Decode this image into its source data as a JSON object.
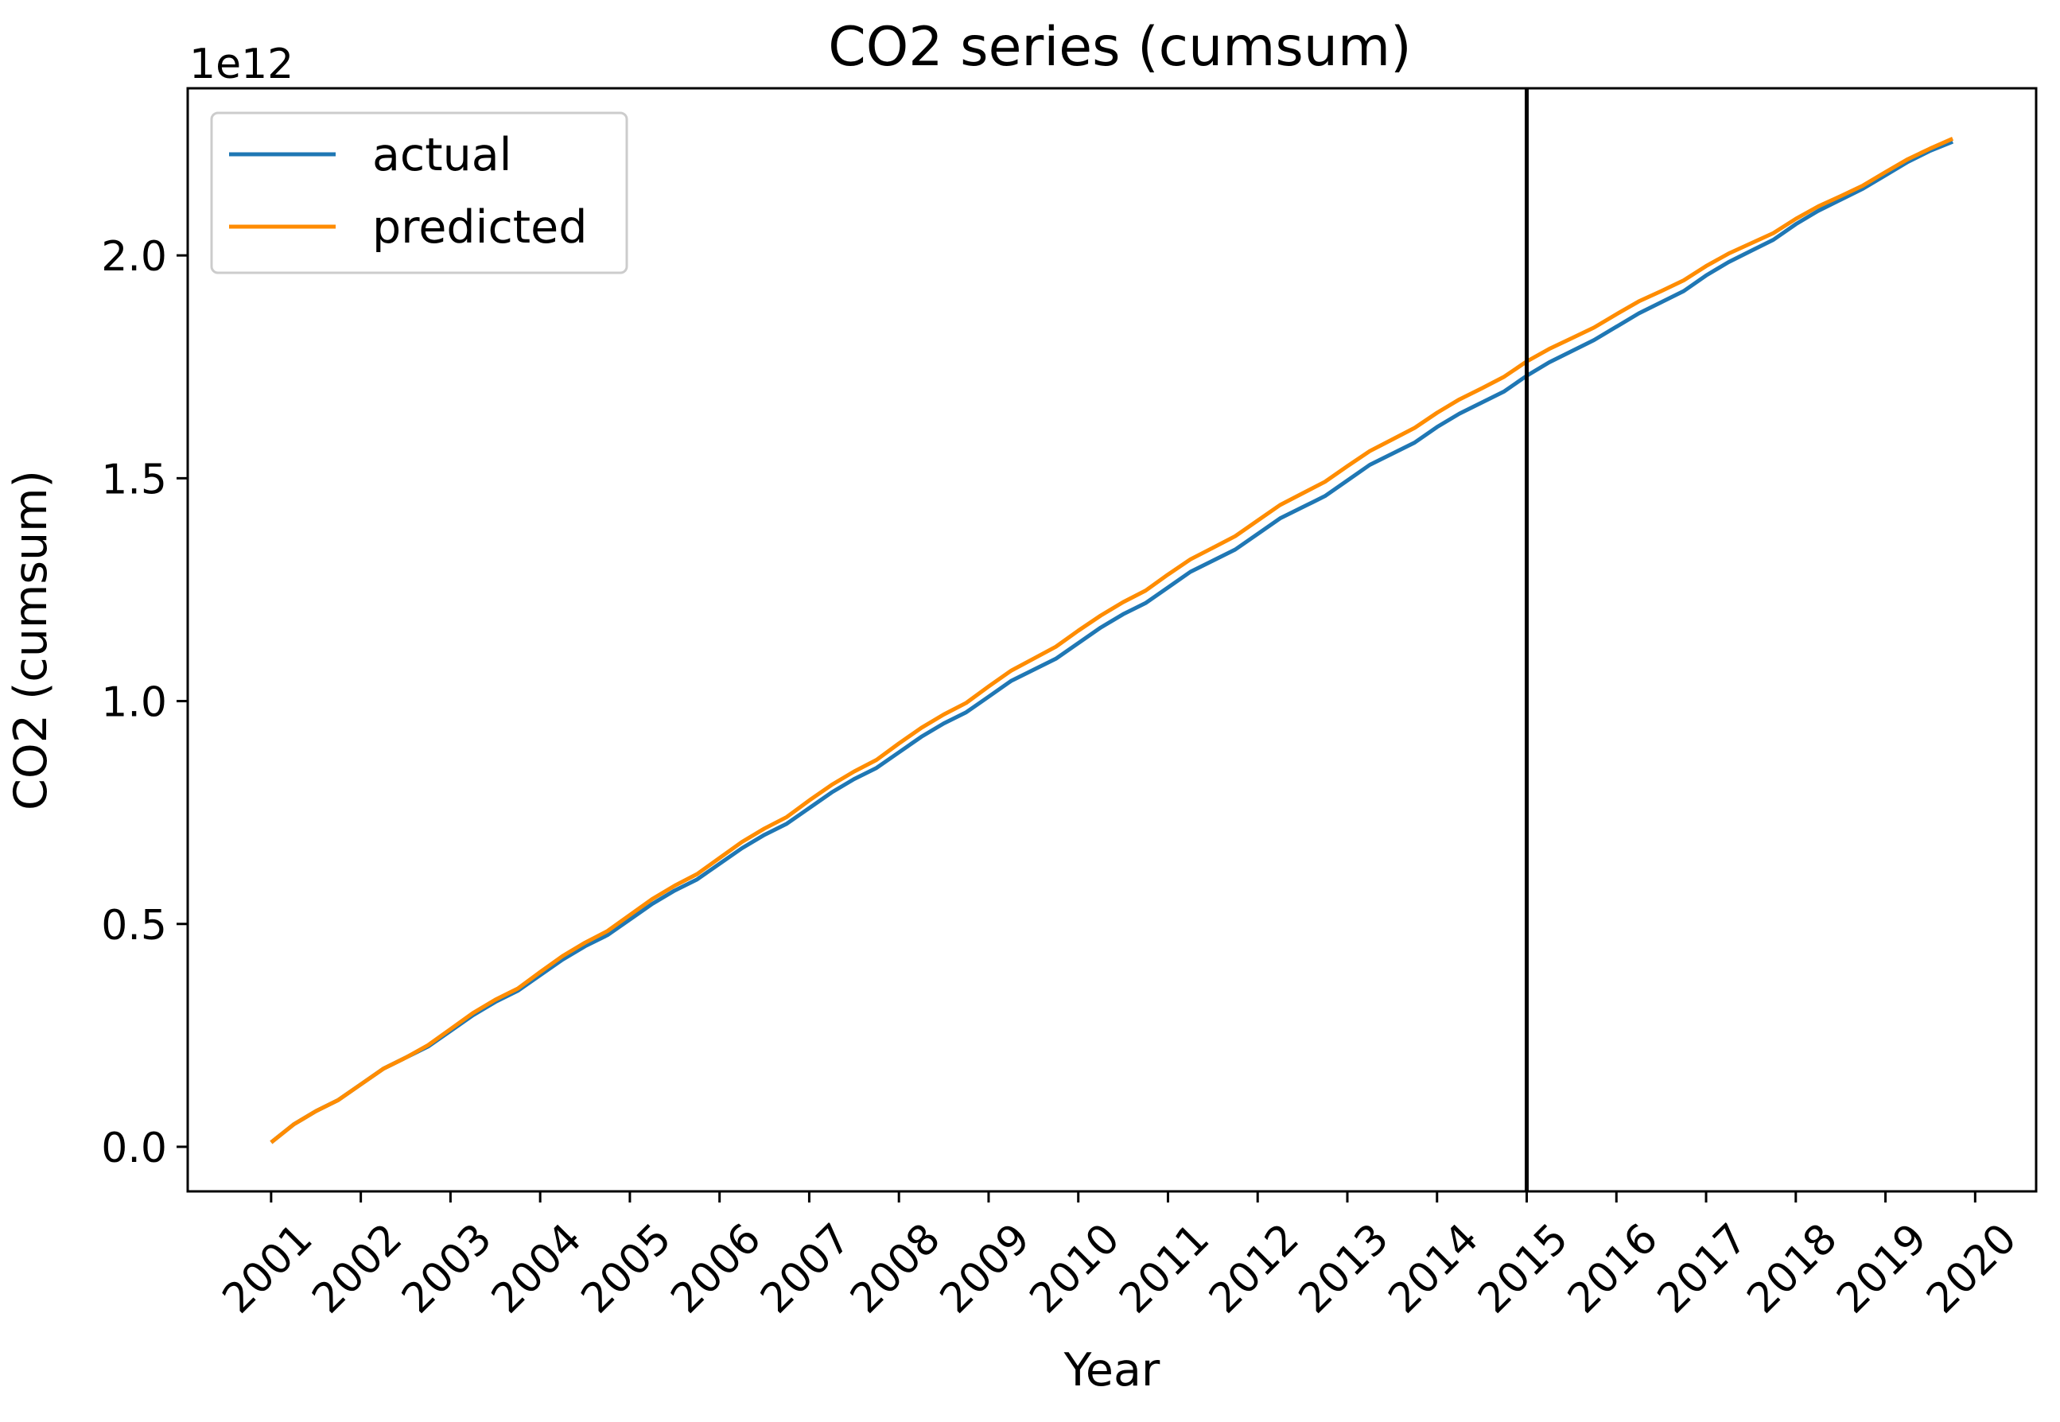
{
  "chart_data": {
    "type": "line",
    "title": "CO2 series (cumsum)",
    "xlabel": "Year",
    "ylabel": "CO2 (cumsum)",
    "y_offset_label": "1e12",
    "x_ticks": [
      "2001",
      "2002",
      "2003",
      "2004",
      "2005",
      "2006",
      "2007",
      "2008",
      "2009",
      "2010",
      "2011",
      "2012",
      "2013",
      "2014",
      "2015",
      "2016",
      "2017",
      "2018",
      "2019",
      "2020"
    ],
    "y_ticks": [
      "0.0",
      "0.5",
      "1.0",
      "1.5",
      "2.0"
    ],
    "xlim": [
      2000.07,
      2020.68
    ],
    "ylim": [
      -0.1,
      2.375
    ],
    "y_unit_multiplier": 1000000000000.0,
    "vertical_line_x": 2015.0,
    "grid": false,
    "legend_position": "upper-left",
    "x": [
      2001.0,
      2001.25,
      2001.5,
      2001.75,
      2002.0,
      2002.25,
      2002.5,
      2002.75,
      2003.0,
      2003.25,
      2003.5,
      2003.75,
      2004.0,
      2004.25,
      2004.5,
      2004.75,
      2005.0,
      2005.25,
      2005.5,
      2005.75,
      2006.0,
      2006.25,
      2006.5,
      2006.75,
      2007.0,
      2007.25,
      2007.5,
      2007.75,
      2008.0,
      2008.25,
      2008.5,
      2008.75,
      2009.0,
      2009.25,
      2009.5,
      2009.75,
      2010.0,
      2010.25,
      2010.5,
      2010.75,
      2011.0,
      2011.25,
      2011.5,
      2011.75,
      2012.0,
      2012.25,
      2012.5,
      2012.75,
      2013.0,
      2013.25,
      2013.5,
      2013.75,
      2014.0,
      2014.25,
      2014.5,
      2014.75,
      2015.0,
      2015.25,
      2015.5,
      2015.75,
      2016.0,
      2016.25,
      2016.5,
      2016.75,
      2017.0,
      2017.25,
      2017.5,
      2017.75,
      2018.0,
      2018.25,
      2018.5,
      2018.75,
      2019.0,
      2019.25,
      2019.5,
      2019.75
    ],
    "series": [
      {
        "name": "actual",
        "color": "#1f77b4",
        "values": [
          0.01,
          0.05,
          0.08,
          0.105,
          0.14,
          0.175,
          0.2,
          0.225,
          0.26,
          0.295,
          0.325,
          0.35,
          0.385,
          0.42,
          0.45,
          0.475,
          0.51,
          0.545,
          0.575,
          0.6,
          0.635,
          0.67,
          0.7,
          0.725,
          0.76,
          0.795,
          0.825,
          0.85,
          0.885,
          0.92,
          0.95,
          0.975,
          1.01,
          1.045,
          1.07,
          1.095,
          1.13,
          1.165,
          1.195,
          1.22,
          1.255,
          1.29,
          1.315,
          1.34,
          1.375,
          1.41,
          1.435,
          1.46,
          1.495,
          1.53,
          1.555,
          1.58,
          1.615,
          1.645,
          1.67,
          1.695,
          1.73,
          1.76,
          1.785,
          1.81,
          1.84,
          1.87,
          1.895,
          1.92,
          1.955,
          1.985,
          2.01,
          2.035,
          2.07,
          2.1,
          2.125,
          2.15,
          2.18,
          2.21,
          2.235,
          2.255
        ]
      },
      {
        "name": "predicted",
        "color": "#ff8c00",
        "values": [
          0.01,
          0.05,
          0.08,
          0.105,
          0.14,
          0.175,
          0.2,
          0.228,
          0.264,
          0.3,
          0.33,
          0.355,
          0.392,
          0.428,
          0.458,
          0.484,
          0.52,
          0.556,
          0.586,
          0.612,
          0.648,
          0.684,
          0.714,
          0.74,
          0.777,
          0.812,
          0.842,
          0.868,
          0.905,
          0.94,
          0.97,
          0.996,
          1.033,
          1.068,
          1.095,
          1.122,
          1.158,
          1.192,
          1.222,
          1.248,
          1.284,
          1.318,
          1.344,
          1.37,
          1.405,
          1.44,
          1.466,
          1.492,
          1.527,
          1.561,
          1.587,
          1.613,
          1.647,
          1.677,
          1.702,
          1.728,
          1.762,
          1.79,
          1.814,
          1.838,
          1.868,
          1.897,
          1.92,
          1.944,
          1.976,
          2.004,
          2.027,
          2.05,
          2.082,
          2.11,
          2.133,
          2.157,
          2.187,
          2.216,
          2.24,
          2.262
        ]
      }
    ]
  }
}
